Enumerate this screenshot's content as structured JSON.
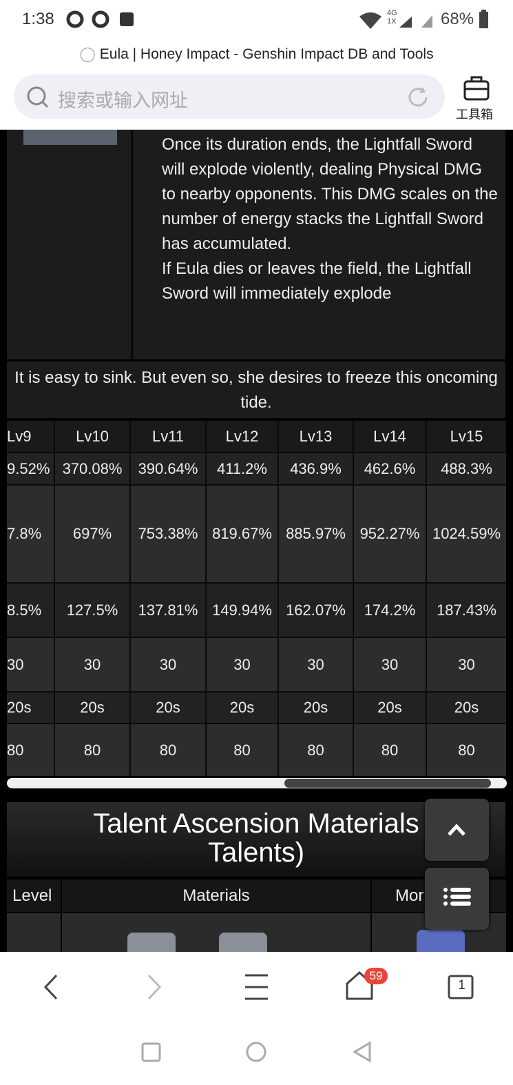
{
  "status_bar": {
    "time": "1:38",
    "network": "4G",
    "network2": "1X",
    "battery": "68%"
  },
  "browser": {
    "page_title": "Eula | Honey Impact - Genshin Impact DB and Tools",
    "search_placeholder": "搜索或输入网址",
    "toolbox": "工具箱"
  },
  "description": {
    "paragraphs": [
      "Once its duration ends, the Lightfall Sword will explode violently, dealing Physical DMG to nearby opponents. This DMG scales on the number of energy stacks the Lightfall Sword has accumulated.",
      "If Eula dies or leaves the field, the Lightfall Sword will immediately explode"
    ]
  },
  "quote": "It is easy to sink. But even so, she desires to freeze this oncoming tide.",
  "table": {
    "header": [
      "Lv9",
      "Lv10",
      "Lv11",
      "Lv12",
      "Lv13",
      "Lv14",
      "Lv15"
    ],
    "rows": [
      [
        "9.52%",
        "370.08%",
        "390.64%",
        "411.2%",
        "436.9%",
        "462.6%",
        "488.3%"
      ],
      [
        "7.8%",
        "697%",
        "753.38%",
        "819.67%",
        "885.97%",
        "952.27%",
        "1024.59%"
      ],
      [
        "8.5%",
        "127.5%",
        "137.81%",
        "149.94%",
        "162.07%",
        "174.2%",
        "187.43%"
      ],
      [
        "30",
        "30",
        "30",
        "30",
        "30",
        "30",
        "30"
      ],
      [
        "20s",
        "20s",
        "20s",
        "20s",
        "20s",
        "20s",
        "20s"
      ],
      [
        "80",
        "80",
        "80",
        "80",
        "80",
        "80",
        "80"
      ]
    ]
  },
  "materials": {
    "heading": [
      "Talent Ascension Materials",
      "Talents)"
    ],
    "header": [
      "Level",
      "Materials",
      "Mor"
    ]
  },
  "nav": {
    "tab_badge": "59",
    "tab_count": "1"
  }
}
